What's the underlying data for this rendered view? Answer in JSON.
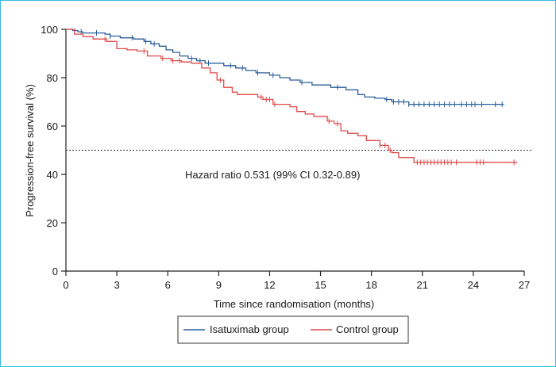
{
  "chart_data": {
    "type": "line",
    "subtype": "kaplan-meier",
    "title": "",
    "xlabel": "Time since randomisation (months)",
    "ylabel": "Progression-free survival (%)",
    "xlim": [
      0,
      27
    ],
    "ylim": [
      0,
      100
    ],
    "x_ticks": [
      0,
      3,
      6,
      9,
      12,
      15,
      18,
      21,
      24,
      27
    ],
    "y_ticks": [
      0,
      20,
      40,
      60,
      80,
      100
    ],
    "grid": false,
    "reference_line": {
      "y": 50,
      "style": "dotted"
    },
    "annotation": "Hazard ratio 0.531 (99% CI 0.32-0.89)",
    "legend_position": "bottom-center",
    "series": [
      {
        "name": "Isatuximab group",
        "color": "#2a5d9a",
        "steps": [
          [
            0,
            100
          ],
          [
            0.4,
            99.5
          ],
          [
            0.7,
            99
          ],
          [
            1.0,
            98.5
          ],
          [
            2.3,
            98
          ],
          [
            2.6,
            97.2
          ],
          [
            3.2,
            96.5
          ],
          [
            4.0,
            96
          ],
          [
            4.6,
            95
          ],
          [
            5.0,
            94
          ],
          [
            5.5,
            93
          ],
          [
            5.9,
            91.5
          ],
          [
            6.3,
            90.5
          ],
          [
            6.7,
            89
          ],
          [
            7.2,
            88
          ],
          [
            7.7,
            87
          ],
          [
            8.2,
            86
          ],
          [
            9.3,
            85
          ],
          [
            10.0,
            84
          ],
          [
            10.6,
            83
          ],
          [
            11.2,
            82
          ],
          [
            12.0,
            81
          ],
          [
            12.6,
            80
          ],
          [
            13.2,
            79
          ],
          [
            13.8,
            78
          ],
          [
            14.5,
            77
          ],
          [
            15.6,
            76
          ],
          [
            16.5,
            75
          ],
          [
            17.2,
            73
          ],
          [
            17.6,
            72
          ],
          [
            18.2,
            71.5
          ],
          [
            18.8,
            71
          ],
          [
            19.2,
            70
          ],
          [
            20.2,
            69
          ],
          [
            25.8,
            69
          ]
        ],
        "censor_x": [
          0.9,
          1.8,
          2.6,
          3.9,
          4.7,
          5.2,
          7.4,
          7.9,
          8.4,
          9.7,
          10.4,
          11.3,
          12.2,
          13.9,
          16.0,
          18.9,
          19.3,
          19.6,
          19.9,
          20.2,
          20.5,
          20.8,
          21.1,
          21.4,
          21.7,
          22.0,
          22.3,
          22.6,
          22.9,
          23.3,
          23.6,
          23.9,
          24.1,
          24.5,
          25.3,
          25.7
        ]
      },
      {
        "name": "Control group",
        "color": "#e04a4a",
        "steps": [
          [
            0,
            100
          ],
          [
            0.5,
            98
          ],
          [
            1.0,
            97
          ],
          [
            1.6,
            96
          ],
          [
            2.4,
            95
          ],
          [
            3.0,
            92
          ],
          [
            3.6,
            91.5
          ],
          [
            4.2,
            91
          ],
          [
            4.8,
            89
          ],
          [
            5.6,
            88
          ],
          [
            6.2,
            87
          ],
          [
            6.8,
            86.5
          ],
          [
            7.4,
            86
          ],
          [
            8.0,
            84
          ],
          [
            8.5,
            82
          ],
          [
            8.9,
            79
          ],
          [
            9.3,
            76
          ],
          [
            9.8,
            74
          ],
          [
            10.1,
            73
          ],
          [
            11.3,
            72
          ],
          [
            11.6,
            71
          ],
          [
            12.2,
            69
          ],
          [
            13.2,
            68
          ],
          [
            13.6,
            66
          ],
          [
            14.1,
            65
          ],
          [
            14.6,
            64
          ],
          [
            15.4,
            62
          ],
          [
            15.8,
            61
          ],
          [
            16.2,
            58
          ],
          [
            16.6,
            57
          ],
          [
            17.2,
            56
          ],
          [
            17.7,
            54
          ],
          [
            18.5,
            52
          ],
          [
            19.0,
            50
          ],
          [
            19.2,
            49
          ],
          [
            19.6,
            47
          ],
          [
            20.5,
            45
          ],
          [
            26.6,
            45
          ]
        ],
        "censor_x": [
          2.3,
          4.6,
          5.7,
          6.3,
          6.7,
          9.1,
          11.5,
          11.8,
          12.0,
          12.3,
          15.5,
          16.0,
          18.5,
          18.8,
          19.1,
          20.7,
          20.9,
          21.1,
          21.3,
          21.5,
          21.7,
          21.9,
          22.1,
          22.3,
          22.5,
          22.7,
          23.0,
          24.2,
          24.4,
          24.6,
          26.4
        ]
      }
    ]
  }
}
